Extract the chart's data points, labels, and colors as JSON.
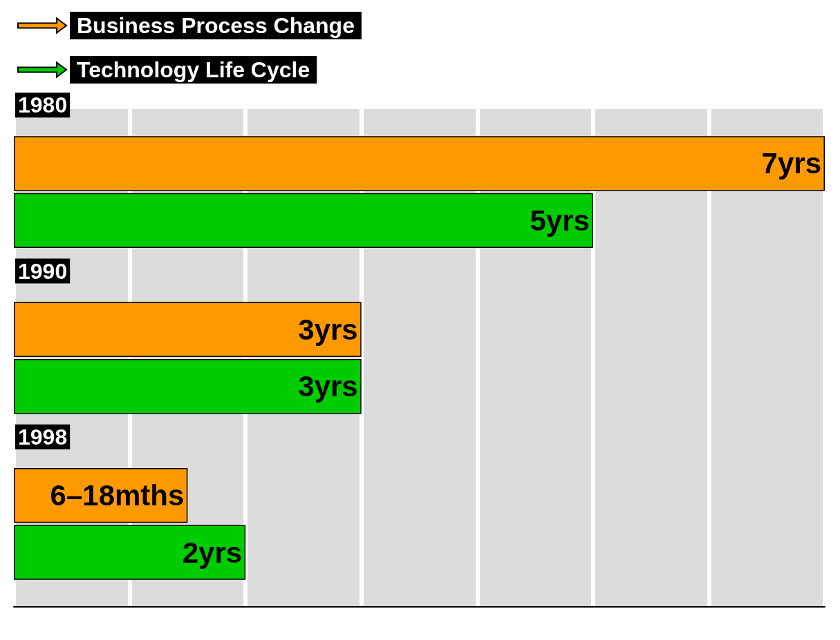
{
  "chart_data": {
    "type": "bar",
    "orientation": "horizontal",
    "categories": [
      "1980",
      "1990",
      "1998"
    ],
    "series": [
      {
        "name": "Business Process Change",
        "color": "#ff9900",
        "values": [
          7,
          3,
          1.5
        ],
        "value_labels": [
          "7yrs",
          "3yrs",
          "6–18mths"
        ]
      },
      {
        "name": "Technology Life Cycle",
        "color": "#00cc00",
        "values": [
          5,
          3,
          2
        ],
        "value_labels": [
          "5yrs",
          "3yrs",
          "2yrs"
        ]
      }
    ],
    "xlim": [
      0,
      7
    ],
    "xticks": [
      {
        "value": 0,
        "label": null
      },
      {
        "value": 1,
        "label": null
      },
      {
        "value": 2,
        "label": null
      },
      {
        "value": 3,
        "label": null
      },
      {
        "value": 4,
        "label": null
      },
      {
        "value": 5,
        "label": null
      },
      {
        "value": 6,
        "label": null
      },
      {
        "value": 7,
        "label": null
      }
    ],
    "grid": "x",
    "legend": "top left",
    "tick_labels": "y"
  }
}
